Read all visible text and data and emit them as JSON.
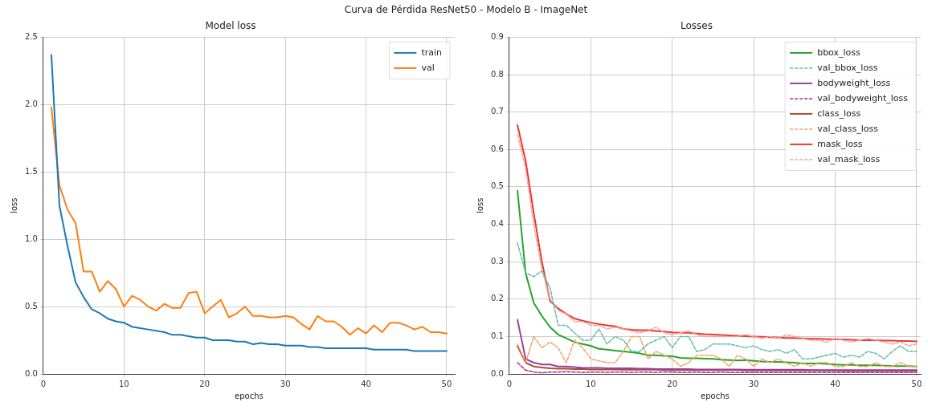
{
  "chart_data": [
    {
      "type": "line",
      "title": "Model loss",
      "xlabel": "epochs",
      "ylabel": "loss",
      "annotations": [
        "Curva de Pérdida ResNet50 - Modelo B - ImageNet"
      ],
      "x": [
        1,
        2,
        3,
        4,
        5,
        6,
        7,
        8,
        9,
        10,
        11,
        12,
        13,
        14,
        15,
        16,
        17,
        18,
        19,
        20,
        21,
        22,
        23,
        24,
        25,
        26,
        27,
        28,
        29,
        30,
        31,
        32,
        33,
        34,
        35,
        36,
        37,
        38,
        39,
        40,
        41,
        42,
        43,
        44,
        45,
        46,
        47,
        48,
        49,
        50
      ],
      "xlim": [
        0,
        51
      ],
      "xticks": [
        0,
        10,
        20,
        30,
        40,
        50
      ],
      "ylim": [
        0,
        2.5
      ],
      "yticks": [
        {
          "value": 0,
          "label": "0.0"
        },
        0.5,
        {
          "value": 1,
          "label": "1.0"
        },
        1.5,
        {
          "value": 2,
          "label": "2.0"
        },
        2.5
      ],
      "grid": true,
      "legend": "top right",
      "marker": "none",
      "line_style": "solid",
      "series": [
        {
          "name": "train",
          "color": "#1f77b4",
          "values": [
            2.37,
            1.25,
            0.95,
            0.68,
            0.57,
            0.48,
            0.45,
            0.41,
            0.39,
            0.38,
            0.35,
            0.34,
            0.33,
            0.32,
            0.31,
            0.29,
            0.29,
            0.28,
            0.27,
            0.27,
            0.25,
            0.25,
            0.25,
            0.24,
            0.24,
            0.22,
            0.23,
            0.22,
            0.22,
            0.21,
            0.21,
            0.21,
            0.2,
            0.2,
            0.19,
            0.19,
            0.19,
            0.19,
            0.19,
            0.19,
            0.18,
            0.18,
            0.18,
            0.18,
            0.18,
            0.17,
            0.17,
            0.17,
            0.17,
            0.17
          ]
        },
        {
          "name": "val",
          "color": "#ff7f0e",
          "values": [
            1.98,
            1.4,
            1.22,
            1.12,
            0.76,
            0.76,
            0.61,
            0.69,
            0.63,
            0.5,
            0.58,
            0.55,
            0.5,
            0.47,
            0.52,
            0.49,
            0.49,
            0.6,
            0.61,
            0.45,
            0.5,
            0.55,
            0.42,
            0.45,
            0.5,
            0.43,
            0.43,
            0.42,
            0.42,
            0.43,
            0.42,
            0.37,
            0.33,
            0.43,
            0.39,
            0.39,
            0.35,
            0.29,
            0.34,
            0.3,
            0.36,
            0.31,
            0.38,
            0.38,
            0.36,
            0.33,
            0.35,
            0.31,
            0.31,
            0.3
          ]
        }
      ]
    },
    {
      "type": "line",
      "title": "Losses",
      "xlabel": "epochs",
      "ylabel": "loss",
      "x": [
        1,
        2,
        3,
        4,
        5,
        6,
        7,
        8,
        9,
        10,
        11,
        12,
        13,
        14,
        15,
        16,
        17,
        18,
        19,
        20,
        21,
        22,
        23,
        24,
        25,
        26,
        27,
        28,
        29,
        30,
        31,
        32,
        33,
        34,
        35,
        36,
        37,
        38,
        39,
        40,
        41,
        42,
        43,
        44,
        45,
        46,
        47,
        48,
        49,
        50
      ],
      "xlim": [
        0,
        50.5
      ],
      "xticks": [
        0,
        10,
        20,
        30,
        40,
        50
      ],
      "ylim": [
        0,
        0.9
      ],
      "yticks": [
        {
          "value": 0,
          "label": "0.0"
        },
        0.1,
        0.2,
        0.3,
        0.4,
        0.5,
        0.6,
        0.7,
        0.8,
        0.9
      ],
      "grid": true,
      "legend": "top right",
      "marker": "none",
      "series": [
        {
          "name": "bbox_loss",
          "color": "#2ca02c",
          "line_style": "solid",
          "values": [
            0.49,
            0.27,
            0.19,
            0.155,
            0.125,
            0.105,
            0.095,
            0.085,
            0.08,
            0.075,
            0.067,
            0.065,
            0.062,
            0.06,
            0.058,
            0.055,
            0.05,
            0.05,
            0.048,
            0.047,
            0.043,
            0.042,
            0.042,
            0.041,
            0.04,
            0.038,
            0.037,
            0.036,
            0.037,
            0.035,
            0.033,
            0.032,
            0.032,
            0.031,
            0.03,
            0.028,
            0.028,
            0.028,
            0.027,
            0.025,
            0.024,
            0.024,
            0.023,
            0.023,
            0.023,
            0.022,
            0.021,
            0.021,
            0.021,
            0.02
          ]
        },
        {
          "name": "val_bbox_loss",
          "color": "#5fbf9f",
          "line_style": "dashed",
          "values": [
            0.35,
            0.27,
            0.26,
            0.275,
            0.23,
            0.13,
            0.13,
            0.11,
            0.09,
            0.09,
            0.12,
            0.08,
            0.1,
            0.09,
            0.06,
            0.06,
            0.08,
            0.09,
            0.1,
            0.07,
            0.1,
            0.1,
            0.06,
            0.065,
            0.08,
            0.08,
            0.08,
            0.075,
            0.07,
            0.075,
            0.065,
            0.06,
            0.065,
            0.055,
            0.065,
            0.04,
            0.04,
            0.045,
            0.05,
            0.055,
            0.045,
            0.05,
            0.045,
            0.06,
            0.055,
            0.04,
            0.06,
            0.075,
            0.06,
            0.06
          ]
        },
        {
          "name": "bodyweight_loss",
          "color": "#9b3fa0",
          "line_style": "solid",
          "values": [
            0.145,
            0.04,
            0.03,
            0.025,
            0.025,
            0.02,
            0.02,
            0.018,
            0.016,
            0.016,
            0.016,
            0.015,
            0.015,
            0.015,
            0.015,
            0.014,
            0.014,
            0.013,
            0.013,
            0.013,
            0.013,
            0.013,
            0.012,
            0.012,
            0.012,
            0.012,
            0.012,
            0.012,
            0.011,
            0.011,
            0.011,
            0.011,
            0.011,
            0.011,
            0.011,
            0.011,
            0.01,
            0.01,
            0.01,
            0.01,
            0.01,
            0.01,
            0.01,
            0.01,
            0.01,
            0.01,
            0.01,
            0.01,
            0.01,
            0.01
          ]
        },
        {
          "name": "val_bodyweight_loss",
          "color": "#c0208f",
          "line_style": "dashed",
          "values": [
            0.03,
            0.01,
            0.005,
            0.003,
            0.005,
            0.005,
            0.006,
            0.005,
            0.004,
            0.005,
            0.005,
            0.004,
            0.005,
            0.005,
            0.004,
            0.005,
            0.005,
            0.004,
            0.005,
            0.005,
            0.004,
            0.004,
            0.005,
            0.004,
            0.004,
            0.005,
            0.004,
            0.004,
            0.004,
            0.004,
            0.004,
            0.004,
            0.004,
            0.004,
            0.004,
            0.004,
            0.004,
            0.004,
            0.004,
            0.004,
            0.004,
            0.004,
            0.004,
            0.004,
            0.004,
            0.004,
            0.004,
            0.004,
            0.004,
            0.004
          ]
        },
        {
          "name": "class_loss",
          "color": "#a0522d",
          "line_style": "solid",
          "values": [
            0.075,
            0.03,
            0.02,
            0.017,
            0.015,
            0.014,
            0.014,
            0.013,
            0.013,
            0.012,
            0.012,
            0.012,
            0.012,
            0.011,
            0.011,
            0.011,
            0.011,
            0.011,
            0.01,
            0.01,
            0.01,
            0.01,
            0.01,
            0.01,
            0.01,
            0.01,
            0.01,
            0.01,
            0.009,
            0.009,
            0.009,
            0.009,
            0.009,
            0.009,
            0.009,
            0.009,
            0.009,
            0.009,
            0.009,
            0.009,
            0.008,
            0.008,
            0.008,
            0.008,
            0.008,
            0.008,
            0.008,
            0.008,
            0.008,
            0.008
          ]
        },
        {
          "name": "val_class_loss",
          "color": "#f4a460",
          "line_style": "dashed",
          "values": [
            0.08,
            0.03,
            0.1,
            0.07,
            0.085,
            0.07,
            0.03,
            0.09,
            0.07,
            0.04,
            0.035,
            0.03,
            0.03,
            0.06,
            0.1,
            0.1,
            0.04,
            0.06,
            0.05,
            0.04,
            0.02,
            0.03,
            0.05,
            0.05,
            0.05,
            0.04,
            0.02,
            0.05,
            0.04,
            0.02,
            0.04,
            0.03,
            0.04,
            0.03,
            0.02,
            0.03,
            0.02,
            0.03,
            0.03,
            0.02,
            0.02,
            0.03,
            0.02,
            0.02,
            0.03,
            0.02,
            0.02,
            0.03,
            0.02,
            0.02
          ]
        },
        {
          "name": "mask_loss",
          "color": "#e8392f",
          "line_style": "solid",
          "values": [
            0.665,
            0.57,
            0.43,
            0.3,
            0.195,
            0.175,
            0.16,
            0.148,
            0.142,
            0.137,
            0.133,
            0.13,
            0.127,
            0.12,
            0.118,
            0.117,
            0.117,
            0.115,
            0.113,
            0.111,
            0.11,
            0.11,
            0.108,
            0.106,
            0.105,
            0.104,
            0.103,
            0.102,
            0.101,
            0.1,
            0.099,
            0.098,
            0.097,
            0.096,
            0.096,
            0.095,
            0.094,
            0.094,
            0.093,
            0.093,
            0.092,
            0.091,
            0.09,
            0.09,
            0.09,
            0.089,
            0.089,
            0.088,
            0.088,
            0.087
          ]
        },
        {
          "name": "val_mask_loss",
          "color": "#f7a1a1",
          "line_style": "dashed",
          "values": [
            0.64,
            0.55,
            0.4,
            0.28,
            0.2,
            0.17,
            0.16,
            0.14,
            0.14,
            0.13,
            0.13,
            0.12,
            0.125,
            0.12,
            0.115,
            0.11,
            0.115,
            0.125,
            0.11,
            0.105,
            0.11,
            0.115,
            0.105,
            0.1,
            0.1,
            0.1,
            0.1,
            0.1,
            0.105,
            0.1,
            0.095,
            0.1,
            0.095,
            0.105,
            0.1,
            0.095,
            0.09,
            0.09,
            0.085,
            0.095,
            0.09,
            0.085,
            0.09,
            0.095,
            0.09,
            0.085,
            0.08,
            0.085,
            0.075,
            0.08
          ]
        }
      ]
    }
  ]
}
